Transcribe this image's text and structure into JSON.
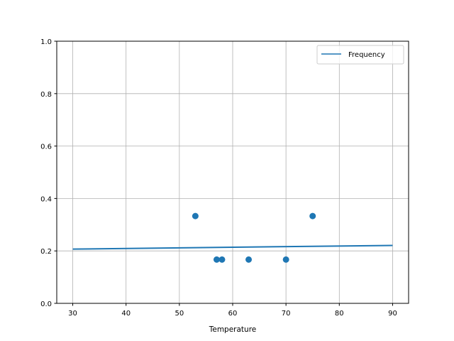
{
  "chart_data": {
    "type": "scatter",
    "title": "",
    "xlabel": "Temperature",
    "ylabel": "",
    "xlim": [
      27,
      93
    ],
    "ylim": [
      0,
      1.0
    ],
    "xticks": [
      30,
      40,
      50,
      60,
      70,
      80,
      90
    ],
    "yticks": [
      "0.0",
      "0.2",
      "0.4",
      "0.6",
      "0.8",
      "1.0"
    ],
    "grid": true,
    "legend": {
      "placement": "top-right",
      "entries": [
        "Frequency"
      ]
    },
    "color": "#1f77b4",
    "scatter": {
      "x": [
        53,
        57,
        58,
        63,
        70,
        75
      ],
      "y": [
        0.333,
        0.167,
        0.167,
        0.167,
        0.167,
        0.333
      ]
    },
    "line": {
      "name": "Frequency",
      "x": [
        30,
        90
      ],
      "y": [
        0.207,
        0.221
      ]
    }
  }
}
